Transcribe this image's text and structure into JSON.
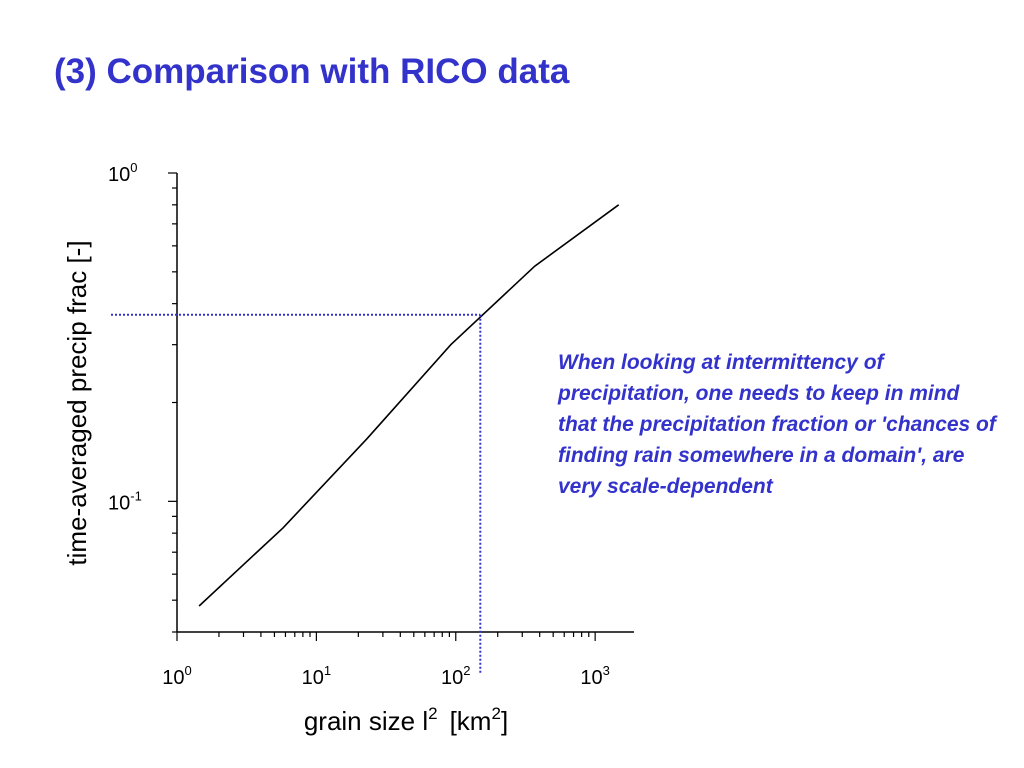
{
  "slide": {
    "title": "(3) Comparison with RICO data",
    "note": "When looking at intermittency of precipitation, one needs to keep in mind that the precipitation fraction or 'chances of finding rain somewhere in a domain', are very scale-dependent"
  },
  "colors": {
    "accent": "#3333cc",
    "line": "#000000",
    "guide": "#3333cc"
  },
  "chart_data": {
    "type": "line",
    "title": "",
    "x_scale": "log",
    "y_scale": "log",
    "xlim": [
      1,
      1900
    ],
    "ylim": [
      0.04,
      1.0
    ],
    "xlabel": {
      "base": "grain size l",
      "sup": "2",
      "unit_open": "[km",
      "unit_sup": "2",
      "unit_close": "]"
    },
    "ylabel": "time-averaged precip frac  [-]",
    "x_ticks": [
      {
        "base": "10",
        "exp": "0",
        "value": 1
      },
      {
        "base": "10",
        "exp": "1",
        "value": 10
      },
      {
        "base": "10",
        "exp": "2",
        "value": 100
      },
      {
        "base": "10",
        "exp": "3",
        "value": 1000
      }
    ],
    "y_ticks": [
      {
        "base": "10",
        "exp": "0",
        "value": 1
      },
      {
        "base": "10",
        "exp": "-1",
        "value": 0.1
      }
    ],
    "series": [
      {
        "x": [
          1.44,
          5.76,
          23.04,
          92.16,
          368.64,
          1474.56
        ],
        "y": [
          0.048,
          0.083,
          0.155,
          0.3,
          0.52,
          0.8
        ]
      }
    ],
    "reference": {
      "x": 150,
      "y": 0.37,
      "style": "dotted"
    },
    "grid": false,
    "legend": "none"
  }
}
